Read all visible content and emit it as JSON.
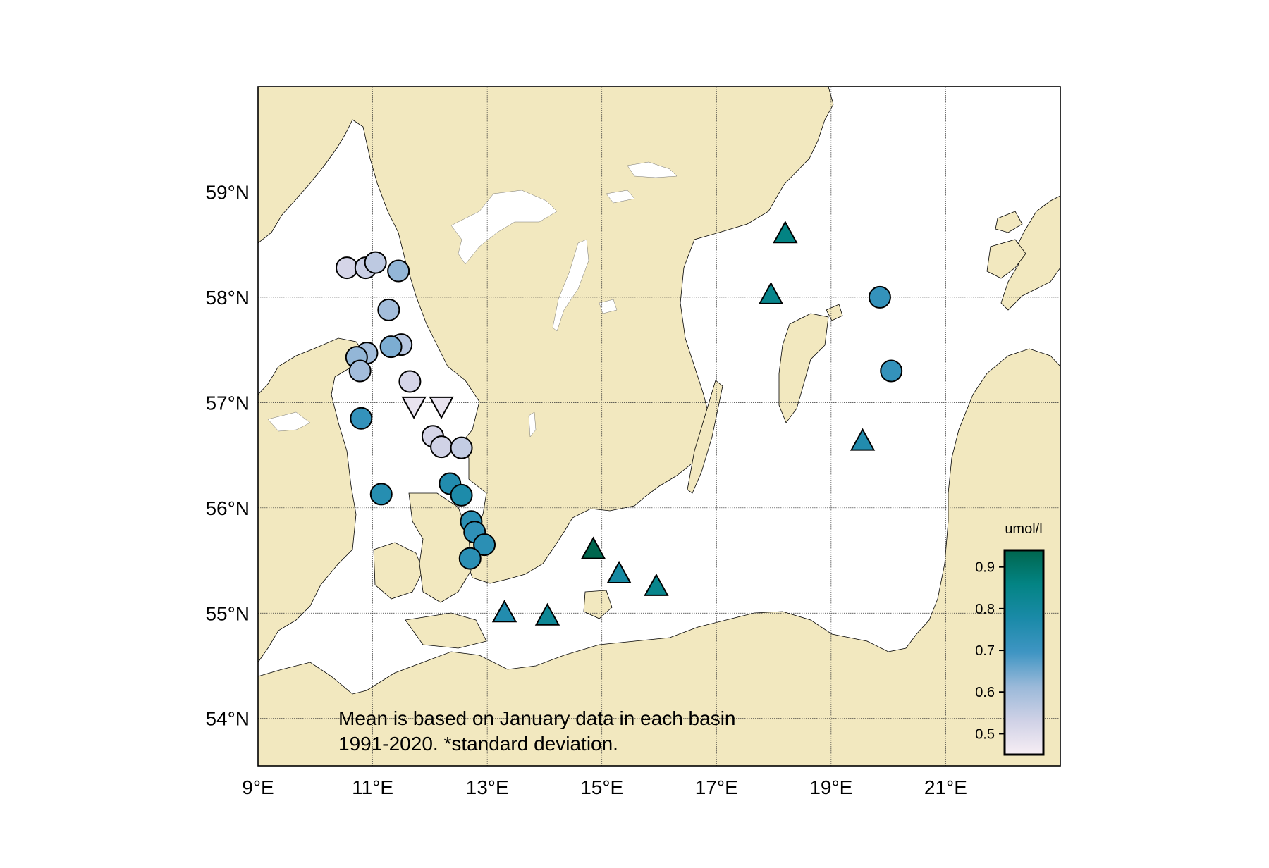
{
  "map": {
    "lon_range": [
      9,
      23
    ],
    "lat_range": [
      53.55,
      60
    ],
    "lon_ticks": [
      9,
      11,
      13,
      15,
      17,
      19,
      21
    ],
    "lat_ticks": [
      54,
      55,
      56,
      57,
      58,
      59
    ],
    "lon_tick_labels": [
      "9°E",
      "11°E",
      "13°E",
      "15°E",
      "17°E",
      "19°E",
      "21°E"
    ],
    "lat_tick_labels": [
      "54°N",
      "55°N",
      "56°N",
      "57°N",
      "58°N",
      "59°N"
    ],
    "grid": true,
    "land_color": "#f2e8bf",
    "sea_color": "#ffffff"
  },
  "note": {
    "line1": "Mean is based on January data in each basin",
    "line2": "1991-2020. *standard deviation."
  },
  "colorbar": {
    "title": "umol/l",
    "min": 0.45,
    "max": 0.94,
    "ticks": [
      0.5,
      0.6,
      0.7,
      0.8,
      0.9
    ],
    "tick_labels": [
      "0.5",
      "0.6",
      "0.7",
      "0.8",
      "0.9"
    ],
    "colors": [
      "#f7eef4",
      "#cfd1e6",
      "#9ab9d9",
      "#3f95c3",
      "#1a8aa8",
      "#038484",
      "#00664e"
    ]
  },
  "stations": [
    {
      "lon": 10.55,
      "lat": 58.28,
      "value": 0.52,
      "marker": "circle"
    },
    {
      "lon": 10.88,
      "lat": 58.28,
      "value": 0.54,
      "marker": "circle"
    },
    {
      "lon": 11.05,
      "lat": 58.33,
      "value": 0.56,
      "marker": "circle"
    },
    {
      "lon": 11.45,
      "lat": 58.25,
      "value": 0.62,
      "marker": "circle"
    },
    {
      "lon": 11.28,
      "lat": 57.88,
      "value": 0.6,
      "marker": "circle"
    },
    {
      "lon": 11.5,
      "lat": 57.55,
      "value": 0.57,
      "marker": "circle"
    },
    {
      "lon": 11.32,
      "lat": 57.53,
      "value": 0.64,
      "marker": "circle"
    },
    {
      "lon": 10.9,
      "lat": 57.47,
      "value": 0.6,
      "marker": "circle"
    },
    {
      "lon": 10.72,
      "lat": 57.43,
      "value": 0.62,
      "marker": "circle"
    },
    {
      "lon": 10.78,
      "lat": 57.3,
      "value": 0.6,
      "marker": "circle"
    },
    {
      "lon": 11.65,
      "lat": 57.2,
      "value": 0.52,
      "marker": "circle"
    },
    {
      "lon": 11.72,
      "lat": 56.97,
      "value": 0.48,
      "marker": "triangle-down"
    },
    {
      "lon": 12.2,
      "lat": 56.97,
      "value": 0.48,
      "marker": "triangle-down"
    },
    {
      "lon": 10.8,
      "lat": 56.85,
      "value": 0.72,
      "marker": "circle"
    },
    {
      "lon": 12.05,
      "lat": 56.68,
      "value": 0.52,
      "marker": "circle"
    },
    {
      "lon": 12.2,
      "lat": 56.58,
      "value": 0.53,
      "marker": "circle"
    },
    {
      "lon": 12.55,
      "lat": 56.57,
      "value": 0.55,
      "marker": "circle"
    },
    {
      "lon": 11.15,
      "lat": 56.13,
      "value": 0.75,
      "marker": "circle"
    },
    {
      "lon": 12.35,
      "lat": 56.23,
      "value": 0.76,
      "marker": "circle"
    },
    {
      "lon": 12.55,
      "lat": 56.12,
      "value": 0.77,
      "marker": "circle"
    },
    {
      "lon": 12.72,
      "lat": 55.87,
      "value": 0.74,
      "marker": "circle"
    },
    {
      "lon": 12.78,
      "lat": 55.77,
      "value": 0.73,
      "marker": "circle"
    },
    {
      "lon": 12.95,
      "lat": 55.65,
      "value": 0.74,
      "marker": "circle"
    },
    {
      "lon": 12.7,
      "lat": 55.52,
      "value": 0.74,
      "marker": "circle"
    },
    {
      "lon": 13.3,
      "lat": 55.0,
      "value": 0.76,
      "marker": "triangle-up"
    },
    {
      "lon": 14.05,
      "lat": 54.97,
      "value": 0.82,
      "marker": "triangle-up"
    },
    {
      "lon": 14.85,
      "lat": 55.6,
      "value": 0.94,
      "marker": "triangle-up"
    },
    {
      "lon": 15.3,
      "lat": 55.37,
      "value": 0.79,
      "marker": "triangle-up"
    },
    {
      "lon": 15.95,
      "lat": 55.25,
      "value": 0.84,
      "marker": "triangle-up"
    },
    {
      "lon": 18.2,
      "lat": 58.6,
      "value": 0.86,
      "marker": "triangle-up"
    },
    {
      "lon": 17.95,
      "lat": 58.02,
      "value": 0.84,
      "marker": "triangle-up"
    },
    {
      "lon": 19.85,
      "lat": 58.0,
      "value": 0.72,
      "marker": "circle"
    },
    {
      "lon": 20.05,
      "lat": 57.3,
      "value": 0.72,
      "marker": "circle"
    },
    {
      "lon": 19.55,
      "lat": 56.63,
      "value": 0.76,
      "marker": "triangle-up"
    }
  ]
}
